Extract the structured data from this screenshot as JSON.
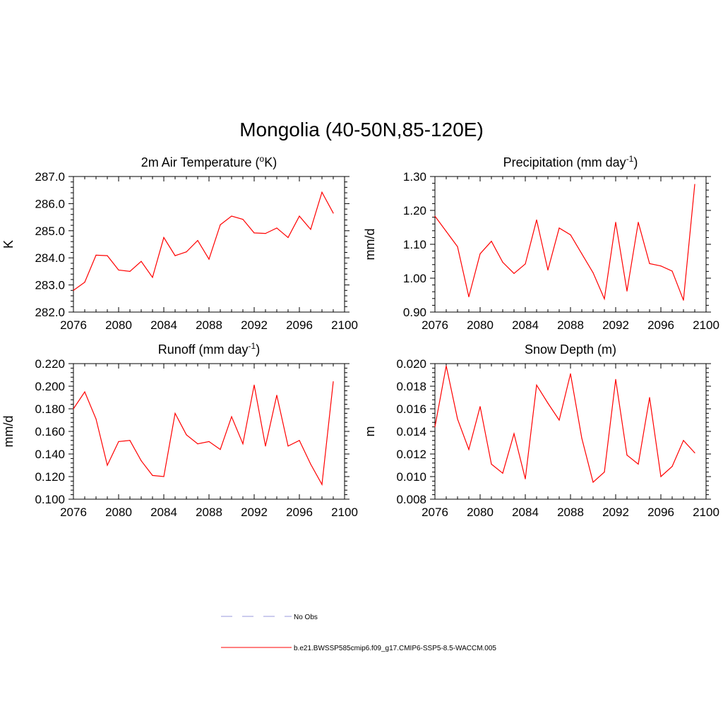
{
  "title": "Mongolia (40-50N,85-120E)",
  "legend": {
    "items": [
      {
        "label": "No Obs",
        "color": "#9999dd",
        "style": "dashed"
      },
      {
        "label": "b.e21.BWSSP585cmip6.f09_g17.CMIP6-SSP5-8.5-WACCM.005",
        "color": "#ff0000",
        "style": "solid"
      }
    ]
  },
  "chart_data": [
    {
      "type": "line",
      "title": "2m Air Temperature (",
      "title_sup": "o",
      "title_after": "K)",
      "ylabel": "K",
      "xlim": [
        2076,
        2100
      ],
      "ylim": [
        282.0,
        287.0
      ],
      "xticks": [
        "2076",
        "2080",
        "2084",
        "2088",
        "2092",
        "2096",
        "2100"
      ],
      "yticks": [
        "282.0",
        "283.0",
        "284.0",
        "285.0",
        "286.0",
        "287.0"
      ],
      "x": [
        2076,
        2077,
        2078,
        2079,
        2080,
        2081,
        2082,
        2083,
        2084,
        2085,
        2086,
        2087,
        2088,
        2089,
        2090,
        2091,
        2092,
        2093,
        2094,
        2095,
        2096,
        2097,
        2098,
        2099
      ],
      "series": [
        {
          "color": "#ff0000",
          "values": [
            282.8,
            283.1,
            284.1,
            284.08,
            283.55,
            283.5,
            283.87,
            283.28,
            284.75,
            284.08,
            284.22,
            284.64,
            283.95,
            285.22,
            285.54,
            285.42,
            284.92,
            284.9,
            285.1,
            284.75,
            285.54,
            285.05,
            286.42,
            285.65
          ]
        }
      ]
    },
    {
      "type": "line",
      "title": "Precipitation (mm day",
      "title_sup": "-1",
      "title_after": ")",
      "ylabel": "mm/d",
      "xlim": [
        2076,
        2100
      ],
      "ylim": [
        0.9,
        1.3
      ],
      "xticks": [
        "2076",
        "2080",
        "2084",
        "2088",
        "2092",
        "2096",
        "2100"
      ],
      "yticks": [
        "0.90",
        "1.00",
        "1.10",
        "1.20",
        "1.30"
      ],
      "x": [
        2076,
        2077,
        2078,
        2079,
        2080,
        2081,
        2082,
        2083,
        2084,
        2085,
        2086,
        2087,
        2088,
        2089,
        2090,
        2091,
        2092,
        2093,
        2094,
        2095,
        2096,
        2097,
        2098,
        2099
      ],
      "series": [
        {
          "color": "#ff0000",
          "values": [
            1.183,
            1.138,
            1.093,
            0.945,
            1.072,
            1.109,
            1.047,
            1.014,
            1.042,
            1.172,
            1.024,
            1.148,
            1.128,
            1.072,
            1.016,
            0.939,
            1.165,
            0.962,
            1.165,
            1.043,
            1.036,
            1.021,
            0.935,
            1.277
          ]
        }
      ]
    },
    {
      "type": "line",
      "title": "Runoff (mm day",
      "title_sup": "-1",
      "title_after": ")",
      "ylabel": "mm/d",
      "xlim": [
        2076,
        2100
      ],
      "ylim": [
        0.1,
        0.22
      ],
      "xticks": [
        "2076",
        "2080",
        "2084",
        "2088",
        "2092",
        "2096",
        "2100"
      ],
      "yticks": [
        "0.100",
        "0.120",
        "0.140",
        "0.160",
        "0.180",
        "0.200",
        "0.220"
      ],
      "x": [
        2076,
        2077,
        2078,
        2079,
        2080,
        2081,
        2082,
        2083,
        2084,
        2085,
        2086,
        2087,
        2088,
        2089,
        2090,
        2091,
        2092,
        2093,
        2094,
        2095,
        2096,
        2097,
        2098,
        2099
      ],
      "series": [
        {
          "color": "#ff0000",
          "values": [
            0.18,
            0.195,
            0.171,
            0.13,
            0.151,
            0.152,
            0.134,
            0.121,
            0.12,
            0.176,
            0.157,
            0.149,
            0.151,
            0.144,
            0.173,
            0.149,
            0.201,
            0.147,
            0.192,
            0.147,
            0.152,
            0.131,
            0.113,
            0.204
          ]
        }
      ]
    },
    {
      "type": "line",
      "title": "Snow Depth (m)",
      "title_sup": "",
      "title_after": "",
      "ylabel": "m",
      "xlim": [
        2076,
        2100
      ],
      "ylim": [
        0.008,
        0.02
      ],
      "xticks": [
        "2076",
        "2080",
        "2084",
        "2088",
        "2092",
        "2096",
        "2100"
      ],
      "yticks": [
        "0.008",
        "0.010",
        "0.012",
        "0.014",
        "0.016",
        "0.018",
        "0.020"
      ],
      "x": [
        2076,
        2077,
        2078,
        2079,
        2080,
        2081,
        2082,
        2083,
        2084,
        2085,
        2086,
        2087,
        2088,
        2089,
        2090,
        2091,
        2092,
        2093,
        2094,
        2095,
        2096,
        2097,
        2098,
        2099
      ],
      "series": [
        {
          "color": "#ff0000",
          "values": [
            0.0144,
            0.0198,
            0.0151,
            0.0124,
            0.0162,
            0.0111,
            0.0103,
            0.0138,
            0.0098,
            0.0181,
            0.0165,
            0.015,
            0.0191,
            0.0134,
            0.0095,
            0.0104,
            0.0186,
            0.0119,
            0.0111,
            0.017,
            0.01,
            0.0109,
            0.0132,
            0.0121
          ]
        }
      ]
    }
  ]
}
